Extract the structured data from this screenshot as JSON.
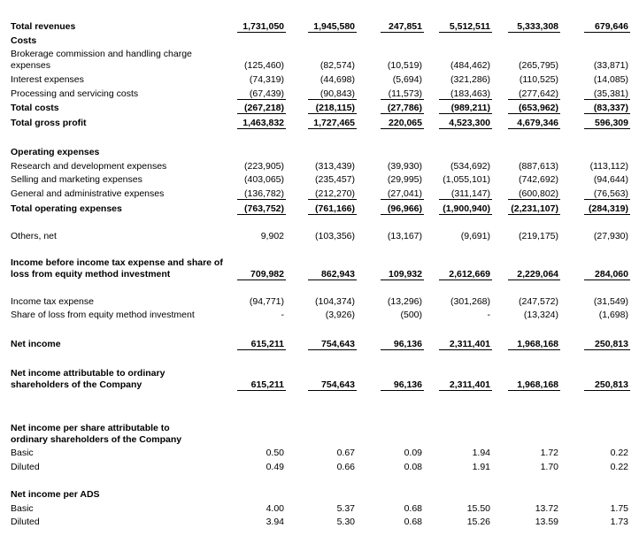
{
  "table": {
    "rows": [
      {
        "label": "Total revenues",
        "values": [
          "1,731,050",
          "1,945,580",
          "247,851",
          "5,512,511",
          "5,333,308",
          "679,646"
        ]
      },
      {
        "label": "Costs"
      },
      {
        "label": [
          "Brokerage commission and handling charge",
          "expenses"
        ],
        "values": [
          "(125,460)",
          "(82,574)",
          "(10,519)",
          "(484,462)",
          "(265,795)",
          "(33,871)"
        ]
      },
      {
        "label": "Interest expenses",
        "values": [
          "(74,319)",
          "(44,698)",
          "(5,694)",
          "(321,286)",
          "(110,525)",
          "(14,085)"
        ]
      },
      {
        "label": "Processing and servicing costs",
        "values": [
          "(67,439)",
          "(90,843)",
          "(11,573)",
          "(183,463)",
          "(277,642)",
          "(35,381)"
        ]
      },
      {
        "label": "Total costs",
        "values": [
          "(267,218)",
          "(218,115)",
          "(27,786)",
          "(989,211)",
          "(653,962)",
          "(83,337)"
        ]
      },
      {
        "label": "Total gross profit",
        "values": [
          "1,463,832",
          "1,727,465",
          "220,065",
          "4,523,300",
          "4,679,346",
          "596,309"
        ]
      },
      {
        "label": "Operating expenses"
      },
      {
        "label": "Research and development expenses",
        "values": [
          "(223,905)",
          "(313,439)",
          "(39,930)",
          "(534,692)",
          "(887,613)",
          "(113,112)"
        ]
      },
      {
        "label": "Selling and marketing expenses",
        "values": [
          "(403,065)",
          "(235,457)",
          "(29,995)",
          "(1,055,101)",
          "(742,692)",
          "(94,644)"
        ]
      },
      {
        "label": "General and administrative expenses",
        "values": [
          "(136,782)",
          "(212,270)",
          "(27,041)",
          "(311,147)",
          "(600,802)",
          "(76,563)"
        ]
      },
      {
        "label": "Total operating expenses",
        "values": [
          "(763,752)",
          "(761,166)",
          "(96,966)",
          "(1,900,940)",
          "(2,231,107)",
          "(284,319)"
        ]
      },
      {
        "label": "Others, net",
        "values": [
          "9,902",
          "(103,356)",
          "(13,167)",
          "(9,691)",
          "(219,175)",
          "(27,930)"
        ]
      },
      {
        "label": [
          "Income before income tax expense and share of",
          "loss from equity method investment"
        ],
        "values": [
          "709,982",
          "862,943",
          "109,932",
          "2,612,669",
          "2,229,064",
          "284,060"
        ]
      },
      {
        "label": "Income tax expense",
        "values": [
          "(94,771)",
          "(104,374)",
          "(13,296)",
          "(301,268)",
          "(247,572)",
          "(31,549)"
        ]
      },
      {
        "label": "Share of loss from equity method investment",
        "values": [
          "-",
          "(3,926)",
          "(500)",
          "-",
          "(13,324)",
          "(1,698)"
        ]
      },
      {
        "label": "Net income",
        "values": [
          "615,211",
          "754,643",
          "96,136",
          "2,311,401",
          "1,968,168",
          "250,813"
        ]
      },
      {
        "label": [
          "Net income attributable to ordinary",
          "shareholders of the Company"
        ],
        "values": [
          "615,211",
          "754,643",
          "96,136",
          "2,311,401",
          "1,968,168",
          "250,813"
        ]
      },
      {
        "label": [
          "Net income per share attributable to",
          "ordinary shareholders of the Company"
        ]
      },
      {
        "label": "Basic",
        "values": [
          "0.50",
          "0.67",
          "0.09",
          "1.94",
          "1.72",
          "0.22"
        ]
      },
      {
        "label": "Diluted",
        "values": [
          "0.49",
          "0.66",
          "0.08",
          "1.91",
          "1.70",
          "0.22"
        ]
      },
      {
        "label": "Net income per ADS"
      },
      {
        "label": "Basic",
        "values": [
          "4.00",
          "5.37",
          "0.68",
          "15.50",
          "13.72",
          "1.75"
        ]
      },
      {
        "label": "Diluted",
        "values": [
          "3.94",
          "5.30",
          "0.68",
          "15.26",
          "13.59",
          "1.73"
        ]
      }
    ]
  }
}
